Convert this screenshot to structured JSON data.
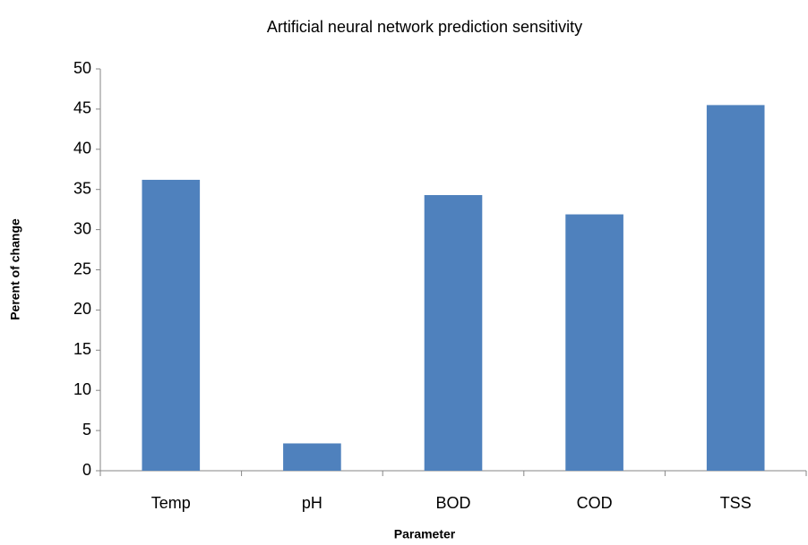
{
  "chart_data": {
    "type": "bar",
    "title": "Artificial neural network prediction sensitivity",
    "x_label": "Parameter",
    "y_label": "Perent of change",
    "categories": [
      "Temp",
      "pH",
      "BOD",
      "COD",
      "TSS"
    ],
    "values": [
      36.2,
      3.4,
      34.3,
      31.9,
      45.5
    ],
    "color": "#4f81bd",
    "ylim": [
      0,
      50
    ],
    "yticks": [
      0,
      5,
      10,
      15,
      20,
      25,
      30,
      35,
      40,
      45,
      50
    ],
    "grid": false
  }
}
